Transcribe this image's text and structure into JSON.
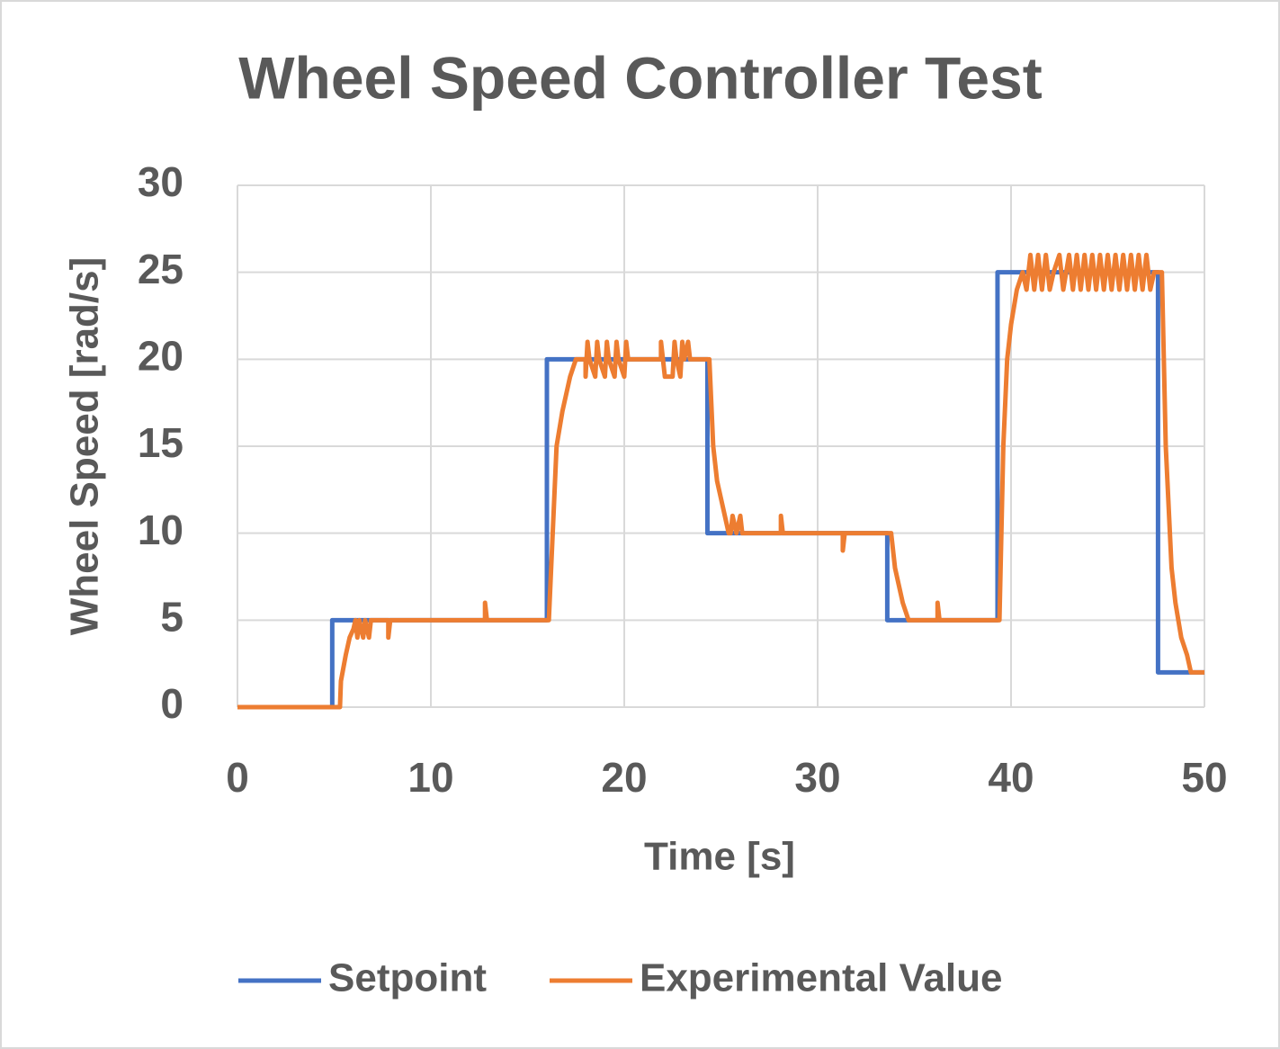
{
  "chart_data": {
    "type": "line",
    "title": "Wheel Speed Controller Test",
    "x_label": "Time [s]",
    "y_label": "Wheel Speed [rad/s]",
    "xlim": [
      0,
      50
    ],
    "xticks": [
      0,
      10,
      20,
      30,
      40,
      50
    ],
    "ylim": [
      0,
      30
    ],
    "yticks": [
      0,
      5,
      10,
      15,
      20,
      25,
      30
    ],
    "grid": true,
    "legend": "bottom",
    "series": [
      {
        "name": "Setpoint",
        "color": "#4472c4",
        "x": [
          0,
          4.9,
          4.9,
          16,
          16,
          24.3,
          24.3,
          33.6,
          33.6,
          39.3,
          39.3,
          47.6,
          47.6,
          50
        ],
        "values": [
          0,
          0,
          5,
          5,
          20,
          20,
          10,
          10,
          5,
          5,
          25,
          25,
          2,
          2
        ]
      },
      {
        "name": "Experimental Value",
        "color": "#ed7d31",
        "x": [
          0,
          5.3,
          5.35,
          5.6,
          5.8,
          6.0,
          6.1,
          6.2,
          6.3,
          6.5,
          6.6,
          6.8,
          6.9,
          7.8,
          7.8,
          7.9,
          12.8,
          12.8,
          12.9,
          16.1,
          16.3,
          16.5,
          16.8,
          17.0,
          17.2,
          17.5,
          18.0,
          18.0,
          18.1,
          18.2,
          18.5,
          18.6,
          18.7,
          19.0,
          19.1,
          19.2,
          19.5,
          19.6,
          19.7,
          20.0,
          20.1,
          20.2,
          21.9,
          21.9,
          22.0,
          22.1,
          22.5,
          22.6,
          22.7,
          22.9,
          23.0,
          23.1,
          23.3,
          23.4,
          24.4,
          24.6,
          24.8,
          25.0,
          25.2,
          25.4,
          25.5,
          25.6,
          25.8,
          26.0,
          26.1,
          28.1,
          28.1,
          28.2,
          31.3,
          31.3,
          31.4,
          33.8,
          34.0,
          34.2,
          34.4,
          34.7,
          36.2,
          36.2,
          36.3,
          39.4,
          39.6,
          39.8,
          40.0,
          40.3,
          40.6,
          40.8,
          41.0,
          41.2,
          41.4,
          41.6,
          41.8,
          42.0,
          42.2,
          42.5,
          42.7,
          43.0,
          43.2,
          43.4,
          43.6,
          43.8,
          44.0,
          44.2,
          44.4,
          44.6,
          44.8,
          45.0,
          45.2,
          45.4,
          45.6,
          45.8,
          46.0,
          46.2,
          46.4,
          46.6,
          46.8,
          47.0,
          47.2,
          47.4,
          47.6,
          47.8,
          48.0,
          48.3,
          48.5,
          48.8,
          49.1,
          49.3,
          50
        ],
        "values": [
          0,
          0,
          1.5,
          3,
          4,
          4.5,
          5,
          4,
          5,
          4,
          5,
          4,
          5,
          5,
          4,
          5,
          5,
          6,
          5,
          5,
          10,
          15,
          17,
          18,
          19,
          20,
          20,
          19,
          21,
          20,
          19,
          21,
          20,
          19,
          21,
          20,
          19,
          21,
          20,
          19,
          21,
          20,
          20,
          21,
          20,
          19,
          19,
          21,
          20,
          19,
          21,
          20,
          21,
          20,
          20,
          15,
          13,
          12,
          11,
          10,
          10,
          11,
          10,
          11,
          10,
          10,
          11,
          10,
          10,
          9,
          10,
          10,
          8,
          7,
          6,
          5,
          5,
          6,
          5,
          5,
          15,
          20,
          22,
          24,
          25,
          24,
          26,
          24,
          26,
          24,
          26,
          24,
          25,
          26,
          24,
          26,
          24,
          26,
          24,
          26,
          24,
          26,
          24,
          26,
          24,
          26,
          24,
          26,
          24,
          26,
          24,
          26,
          24,
          26,
          24,
          26,
          24,
          25,
          25,
          25,
          15,
          8,
          6,
          4,
          3,
          2,
          2
        ]
      }
    ]
  }
}
